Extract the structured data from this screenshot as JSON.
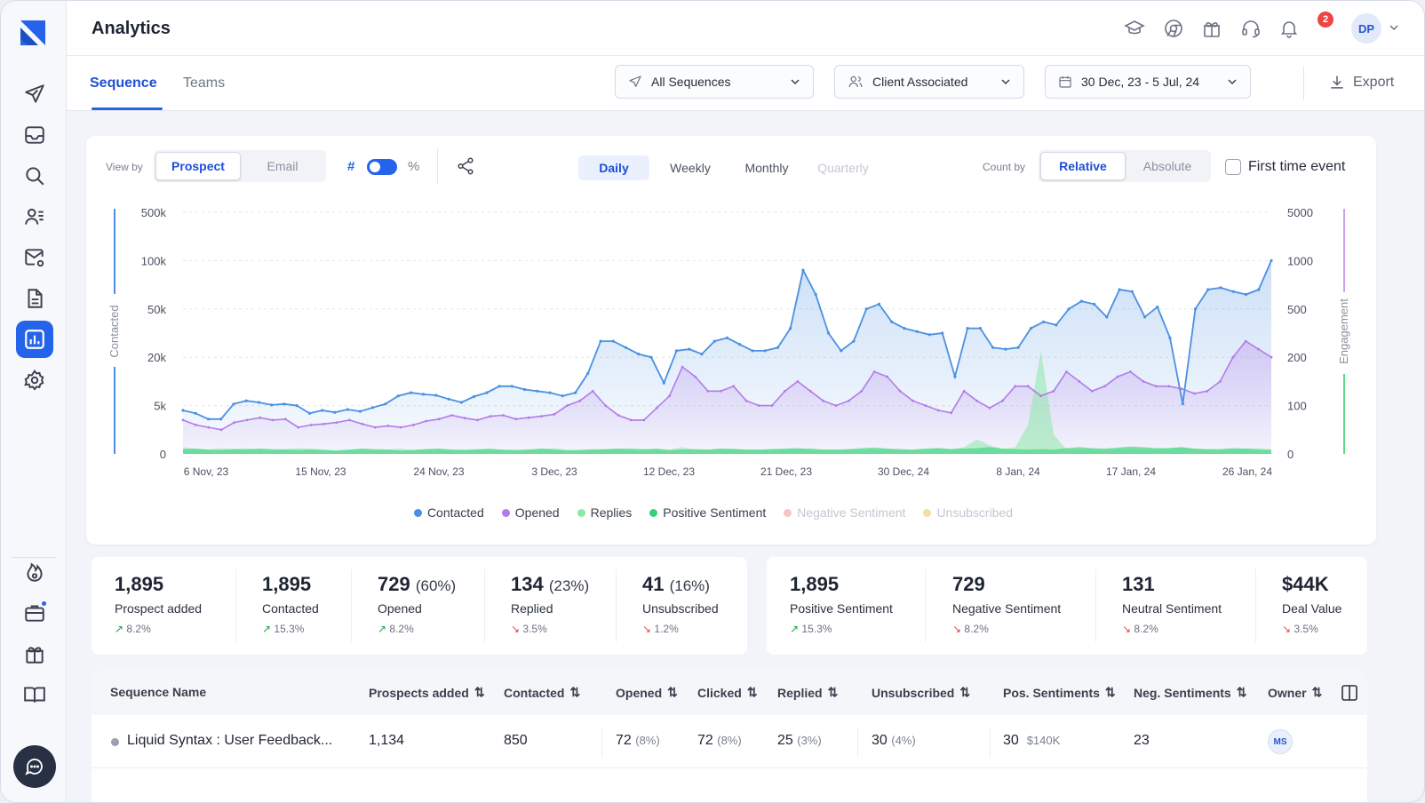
{
  "header": {
    "title": "Analytics",
    "notification_count": "2",
    "user_initials": "DP"
  },
  "tabs": [
    {
      "label": "Sequence",
      "active": true
    },
    {
      "label": "Teams",
      "active": false
    }
  ],
  "filters": {
    "sequences": "All Sequences",
    "client": "Client Associated",
    "date_range": "30 Dec, 23 - 5 Jul, 24",
    "export": "Export"
  },
  "controls": {
    "view_by_label": "View by",
    "view_by": [
      "Prospect",
      "Email"
    ],
    "hash": "#",
    "percent": "%",
    "periods": [
      "Daily",
      "Weekly",
      "Monthly",
      "Quarterly"
    ],
    "count_by_label": "Count by",
    "count_by": [
      "Relative",
      "Absolute"
    ],
    "first_time_event": "First time event"
  },
  "colors": {
    "accent": "#2563eb",
    "contacted": "#4a90e2",
    "opened": "#b37ce8",
    "replies": "#8ee8a8",
    "positive": "#34d17a",
    "negative": "#f6c6c0",
    "unsubscribed": "#f5dfa0"
  },
  "chart_data": {
    "type": "line",
    "ylabel": "Contacted",
    "ylabel_right": "Engagement",
    "y_ticks_left": [
      "500k",
      "100k",
      "50k",
      "20k",
      "5k",
      "0"
    ],
    "y_ticks_right": [
      "5000",
      "1000",
      "500",
      "200",
      "100",
      "0"
    ],
    "x_ticks": [
      "6 Nov, 23",
      "15 Nov, 23",
      "24 Nov, 23",
      "3 Dec, 23",
      "12 Dec, 23",
      "21 Dec, 23",
      "30 Dec, 24",
      "8 Jan, 24",
      "17 Jan, 24",
      "26 Jan, 24"
    ],
    "grid": true,
    "legend": [
      {
        "name": "Contacted",
        "active": true
      },
      {
        "name": "Opened",
        "active": true
      },
      {
        "name": "Replies",
        "active": true
      },
      {
        "name": "Positive Sentiment",
        "active": true
      },
      {
        "name": "Negative Sentiment",
        "active": false
      },
      {
        "name": "Unsubscribed",
        "active": false
      }
    ],
    "series": [
      {
        "name": "Contacted",
        "values": [
          4500,
          4200,
          3600,
          3600,
          5500,
          6500,
          6000,
          5200,
          5500,
          5000,
          4200,
          4500,
          4300,
          4600,
          4400,
          4800,
          5500,
          8000,
          9000,
          8500,
          8200,
          7000,
          6000,
          7800,
          9000,
          11000,
          11000,
          10000,
          9500,
          9000,
          8000,
          9000,
          15000,
          30000,
          30000,
          26000,
          22000,
          20000,
          12000,
          24000,
          25000,
          22000,
          30000,
          32000,
          28000,
          24000,
          24000,
          26000,
          38000,
          90000,
          65000,
          35000,
          24000,
          30000,
          50000,
          55000,
          42000,
          38000,
          36000,
          34000,
          35000,
          14000,
          38000,
          38000,
          26000,
          25000,
          26000,
          38000,
          42000,
          40000,
          50000,
          58000,
          55000,
          45000,
          70000,
          68000,
          45000,
          52000,
          32000,
          5500,
          50000,
          70000,
          72000,
          68000,
          65000,
          70000,
          100000
        ]
      },
      {
        "name": "Opened",
        "values": [
          70,
          60,
          55,
          50,
          65,
          70,
          75,
          70,
          72,
          55,
          60,
          62,
          65,
          70,
          62,
          55,
          58,
          55,
          60,
          68,
          72,
          80,
          74,
          70,
          78,
          80,
          72,
          75,
          78,
          82,
          100,
          110,
          130,
          100,
          80,
          70,
          70,
          95,
          120,
          180,
          160,
          130,
          130,
          140,
          110,
          100,
          100,
          130,
          150,
          130,
          110,
          100,
          110,
          130,
          170,
          160,
          130,
          110,
          100,
          90,
          85,
          130,
          110,
          95,
          110,
          140,
          140,
          120,
          130,
          170,
          150,
          130,
          140,
          160,
          170,
          150,
          140,
          140,
          135,
          125,
          130,
          150,
          200,
          300,
          250,
          200
        ]
      },
      {
        "name": "Replies",
        "values": [
          14,
          10,
          9,
          12,
          10,
          12,
          9,
          7,
          10,
          12,
          11,
          9,
          7,
          8,
          10,
          7,
          9,
          11,
          8,
          10,
          9,
          8,
          9,
          10,
          12,
          7,
          8,
          9,
          10,
          12,
          9,
          8,
          10,
          9,
          10,
          12,
          11,
          8,
          9,
          14,
          8,
          9,
          10,
          11,
          9,
          8,
          10,
          9,
          10,
          12,
          9,
          8,
          9,
          8,
          9,
          10,
          8,
          8,
          9,
          12,
          10,
          14,
          30,
          18,
          10,
          14,
          60,
          240,
          40,
          10,
          9,
          10,
          9,
          10,
          11,
          10,
          10,
          12,
          14,
          10,
          9,
          8,
          9,
          11,
          12,
          10
        ]
      },
      {
        "name": "Positive Sentiment",
        "values": [
          10,
          11,
          9,
          8,
          10,
          9,
          11,
          10,
          9,
          8,
          9,
          8,
          7,
          9,
          11,
          10,
          9,
          7,
          8,
          10,
          11,
          9,
          8,
          9,
          10,
          9,
          8,
          9,
          11,
          9,
          7,
          8,
          9,
          10,
          11,
          10,
          9,
          11,
          8,
          9,
          10,
          9,
          11,
          10,
          9,
          9,
          10,
          11,
          12,
          10,
          9,
          9,
          10,
          12,
          13,
          11,
          10,
          9,
          11,
          12,
          10,
          11,
          12,
          14,
          11,
          10,
          9,
          10,
          9,
          12,
          14,
          12,
          11,
          13,
          15,
          14,
          12,
          12,
          14,
          11,
          10,
          10,
          12,
          11,
          9,
          8
        ]
      }
    ]
  },
  "stats_left": [
    {
      "value": "1,895",
      "pct": "",
      "label": "Prospect added",
      "change": "8.2%",
      "dir": "up"
    },
    {
      "value": "1,895",
      "pct": "",
      "label": "Contacted",
      "change": "15.3%",
      "dir": "up"
    },
    {
      "value": "729",
      "pct": "(60%)",
      "label": "Opened",
      "change": "8.2%",
      "dir": "up"
    },
    {
      "value": "134",
      "pct": "(23%)",
      "label": "Replied",
      "change": "3.5%",
      "dir": "down"
    },
    {
      "value": "41",
      "pct": "(16%)",
      "label": "Unsubscribed",
      "change": "1.2%",
      "dir": "down"
    }
  ],
  "stats_right": [
    {
      "value": "1,895",
      "label": "Positive Sentiment",
      "change": "15.3%",
      "dir": "up"
    },
    {
      "value": "729",
      "label": "Negative Sentiment",
      "change": "8.2%",
      "dir": "down"
    },
    {
      "value": "131",
      "label": "Neutral Sentiment",
      "change": "8.2%",
      "dir": "down"
    },
    {
      "value": "$44K",
      "label": "Deal Value",
      "change": "3.5%",
      "dir": "down"
    }
  ],
  "table": {
    "headers": [
      "Sequence Name",
      "Prospects added",
      "Contacted",
      "Opened",
      "Clicked",
      "Replied",
      "Unsubscribed",
      "Pos. Sentiments",
      "Neg. Sentiments",
      "Owner"
    ],
    "rows": [
      {
        "name": "Liquid Syntax : User Feedback...",
        "prospects": "1,134",
        "contacted": "850",
        "opened": "72",
        "opened_pct": "(8%)",
        "clicked": "72",
        "clicked_pct": "(8%)",
        "replied": "25",
        "replied_pct": "(3%)",
        "unsubscribed": "30",
        "unsubscribed_pct": "(4%)",
        "pos": "30",
        "pos_value": "$140K",
        "neg": "23",
        "owner": "MS"
      }
    ]
  }
}
